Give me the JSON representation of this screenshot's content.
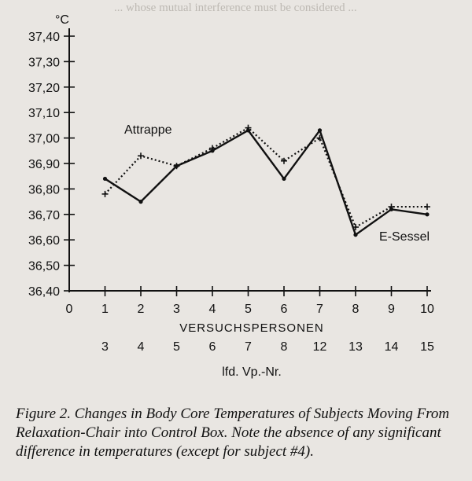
{
  "chart_data": {
    "type": "line",
    "ylabel": "°C",
    "xlabel": "VERSUCHSPERSONEN",
    "xlabel2": "lfd. Vp.-Nr.",
    "x": [
      1,
      2,
      3,
      4,
      5,
      6,
      7,
      8,
      9,
      10
    ],
    "x_tick_labels": [
      "0",
      "1",
      "2",
      "3",
      "4",
      "5",
      "6",
      "7",
      "8",
      "9",
      "10"
    ],
    "secondary_tick_labels": [
      "3",
      "4",
      "5",
      "6",
      "7",
      "8",
      "12",
      "13",
      "14",
      "15"
    ],
    "y_tick_labels": [
      "37,40",
      "37,30",
      "37,20",
      "37,10",
      "37,00",
      "36,90",
      "36,80",
      "36,70",
      "36,60",
      "36,50",
      "36,40"
    ],
    "ylim": [
      36.4,
      37.4
    ],
    "xlim": [
      0,
      10
    ],
    "series": [
      {
        "name": "Attrappe",
        "style": "dotted",
        "values": [
          36.78,
          36.93,
          36.89,
          36.96,
          37.04,
          36.91,
          37.0,
          36.65,
          36.73,
          36.73
        ]
      },
      {
        "name": "E-Sessel",
        "style": "solid",
        "values": [
          36.84,
          36.75,
          36.89,
          36.95,
          37.03,
          36.84,
          37.03,
          36.62,
          36.72,
          36.7
        ]
      }
    ]
  },
  "caption": "Figure 2. Changes in Body Core Temperatures of Subjects Moving From Relaxation-Chair into Control Box. Note the absence of any significant difference in temperatures (except for subject #4)."
}
